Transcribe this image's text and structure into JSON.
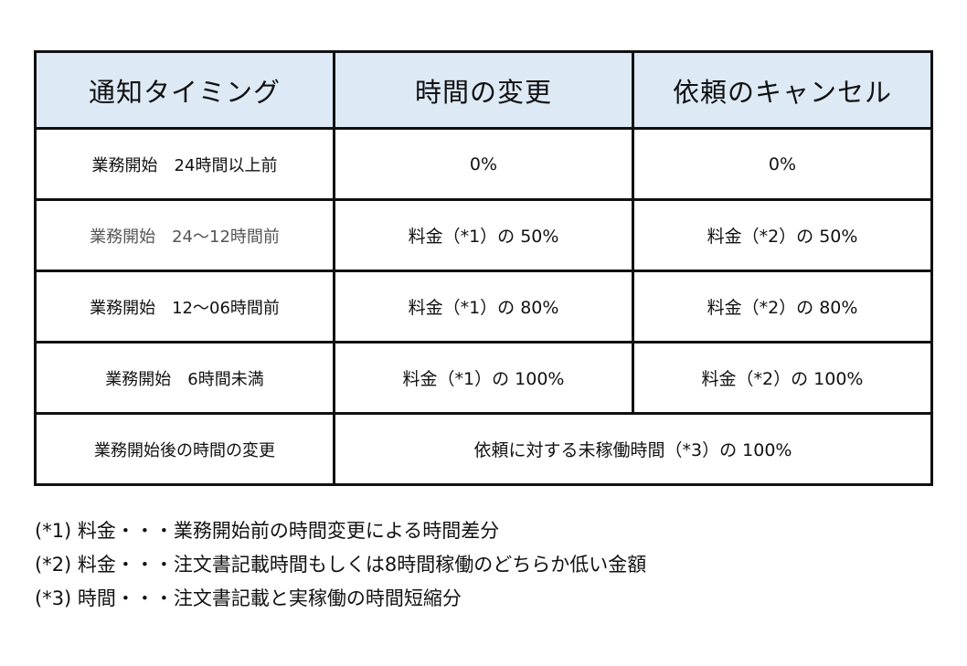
{
  "table": {
    "headers": [
      "通知タイミング",
      "時間の変更",
      "依頼のキャンセル"
    ],
    "rows": [
      {
        "timing": "業務開始　24時間以上前",
        "change": "0%",
        "cancel": "0%"
      },
      {
        "timing": "業務開始　24～12時間前",
        "change": "料金（*1）の 50%",
        "cancel": "料金（*2）の 50%"
      },
      {
        "timing": "業務開始　12～06時間前",
        "change": "料金（*1）の 80%",
        "cancel": "料金（*2）の 80%"
      },
      {
        "timing": "業務開始　6時間未満",
        "change": "料金（*1）の 100%",
        "cancel": "料金（*2）の 100%"
      },
      {
        "timing": "業務開始後の時間の変更",
        "merged": "依頼に対する未稼働時間（*3）の 100%"
      }
    ]
  },
  "notes": [
    "(*1) 料金・・・業務開始前の時間変更による時間差分",
    "(*2) 料金・・・注文書記載時間もしくは8時間稼働のどちらか低い金額",
    "(*3) 時間・・・注文書記載と実稼働の時間短縮分"
  ]
}
